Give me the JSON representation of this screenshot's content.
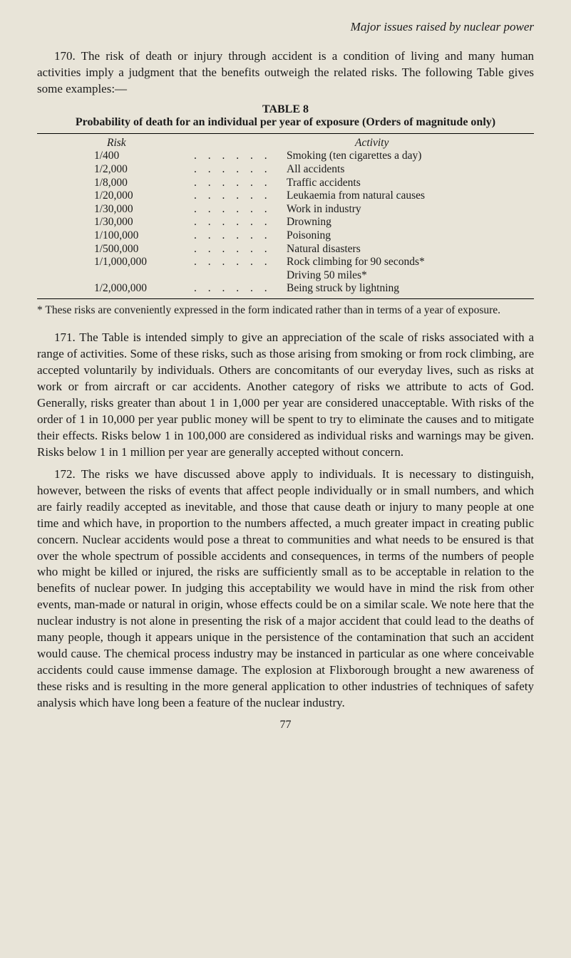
{
  "running_head": "Major issues raised by nuclear power",
  "para170": "170. The risk of death or injury through accident is a condition of living and many human activities imply a judgment that the benefits outweigh the related risks. The following Table gives some examples:—",
  "table": {
    "caption": "TABLE 8",
    "subcaption": "Probability of death for an individual per year of exposure (Orders of magnitude only)",
    "header_risk": "Risk",
    "header_activity": "Activity",
    "rows": [
      {
        "risk": "1/400",
        "activity": "Smoking (ten cigarettes a day)"
      },
      {
        "risk": "1/2,000",
        "activity": "All accidents"
      },
      {
        "risk": "1/8,000",
        "activity": "Traffic accidents"
      },
      {
        "risk": "1/20,000",
        "activity": "Leukaemia from natural causes"
      },
      {
        "risk": "1/30,000",
        "activity": "Work in industry"
      },
      {
        "risk": "1/30,000",
        "activity": "Drowning"
      },
      {
        "risk": "1/100,000",
        "activity": "Poisoning"
      },
      {
        "risk": "1/500,000",
        "activity": "Natural disasters"
      },
      {
        "risk": "1/1,000,000",
        "activity": "Rock climbing for 90 seconds*"
      },
      {
        "risk": "",
        "activity": "Driving 50 miles*"
      },
      {
        "risk": "1/2,000,000",
        "activity": "Being struck by lightning"
      }
    ]
  },
  "footnote": "* These risks are conveniently expressed in the form indicated rather than in terms of a year of exposure.",
  "para171": "171. The Table is intended simply to give an appreciation of the scale of risks associated with a range of activities. Some of these risks, such as those arising from smoking or from rock climbing, are accepted voluntarily by individuals. Others are concomitants of our everyday lives, such as risks at work or from aircraft or car accidents. Another category of risks we attribute to acts of God. Generally, risks greater than about 1 in 1,000 per year are considered unacceptable. With risks of the order of 1 in 10,000 per year public money will be spent to try to eliminate the causes and to mitigate their effects. Risks below 1 in 100,000 are considered as individual risks and warnings may be given. Risks below 1 in 1 million per year are generally accepted without concern.",
  "para172": "172. The risks we have discussed above apply to individuals. It is necessary to distinguish, however, between the risks of events that affect people individually or in small numbers, and which are fairly readily accepted as inevitable, and those that cause death or injury to many people at one time and which have, in proportion to the numbers affected, a much greater impact in creating public concern. Nuclear accidents would pose a threat to communities and what needs to be ensured is that over the whole spectrum of possible accidents and consequences, in terms of the numbers of people who might be killed or injured, the risks are sufficiently small as to be acceptable in relation to the benefits of nuclear power. In judging this acceptability we would have in mind the risk from other events, man-made or natural in origin, whose effects could be on a similar scale. We note here that the nuclear industry is not alone in presenting the risk of a major accident that could lead to the deaths of many people, though it appears unique in the persistence of the contamination that such an accident would cause. The chemical process industry may be instanced in particular as one where conceivable accidents could cause immense damage. The explosion at Flixborough brought a new awareness of these risks and is resulting in the more general application to other industries of techniques of safety analysis which have long been a feature of the nuclear industry.",
  "page_number": "77"
}
